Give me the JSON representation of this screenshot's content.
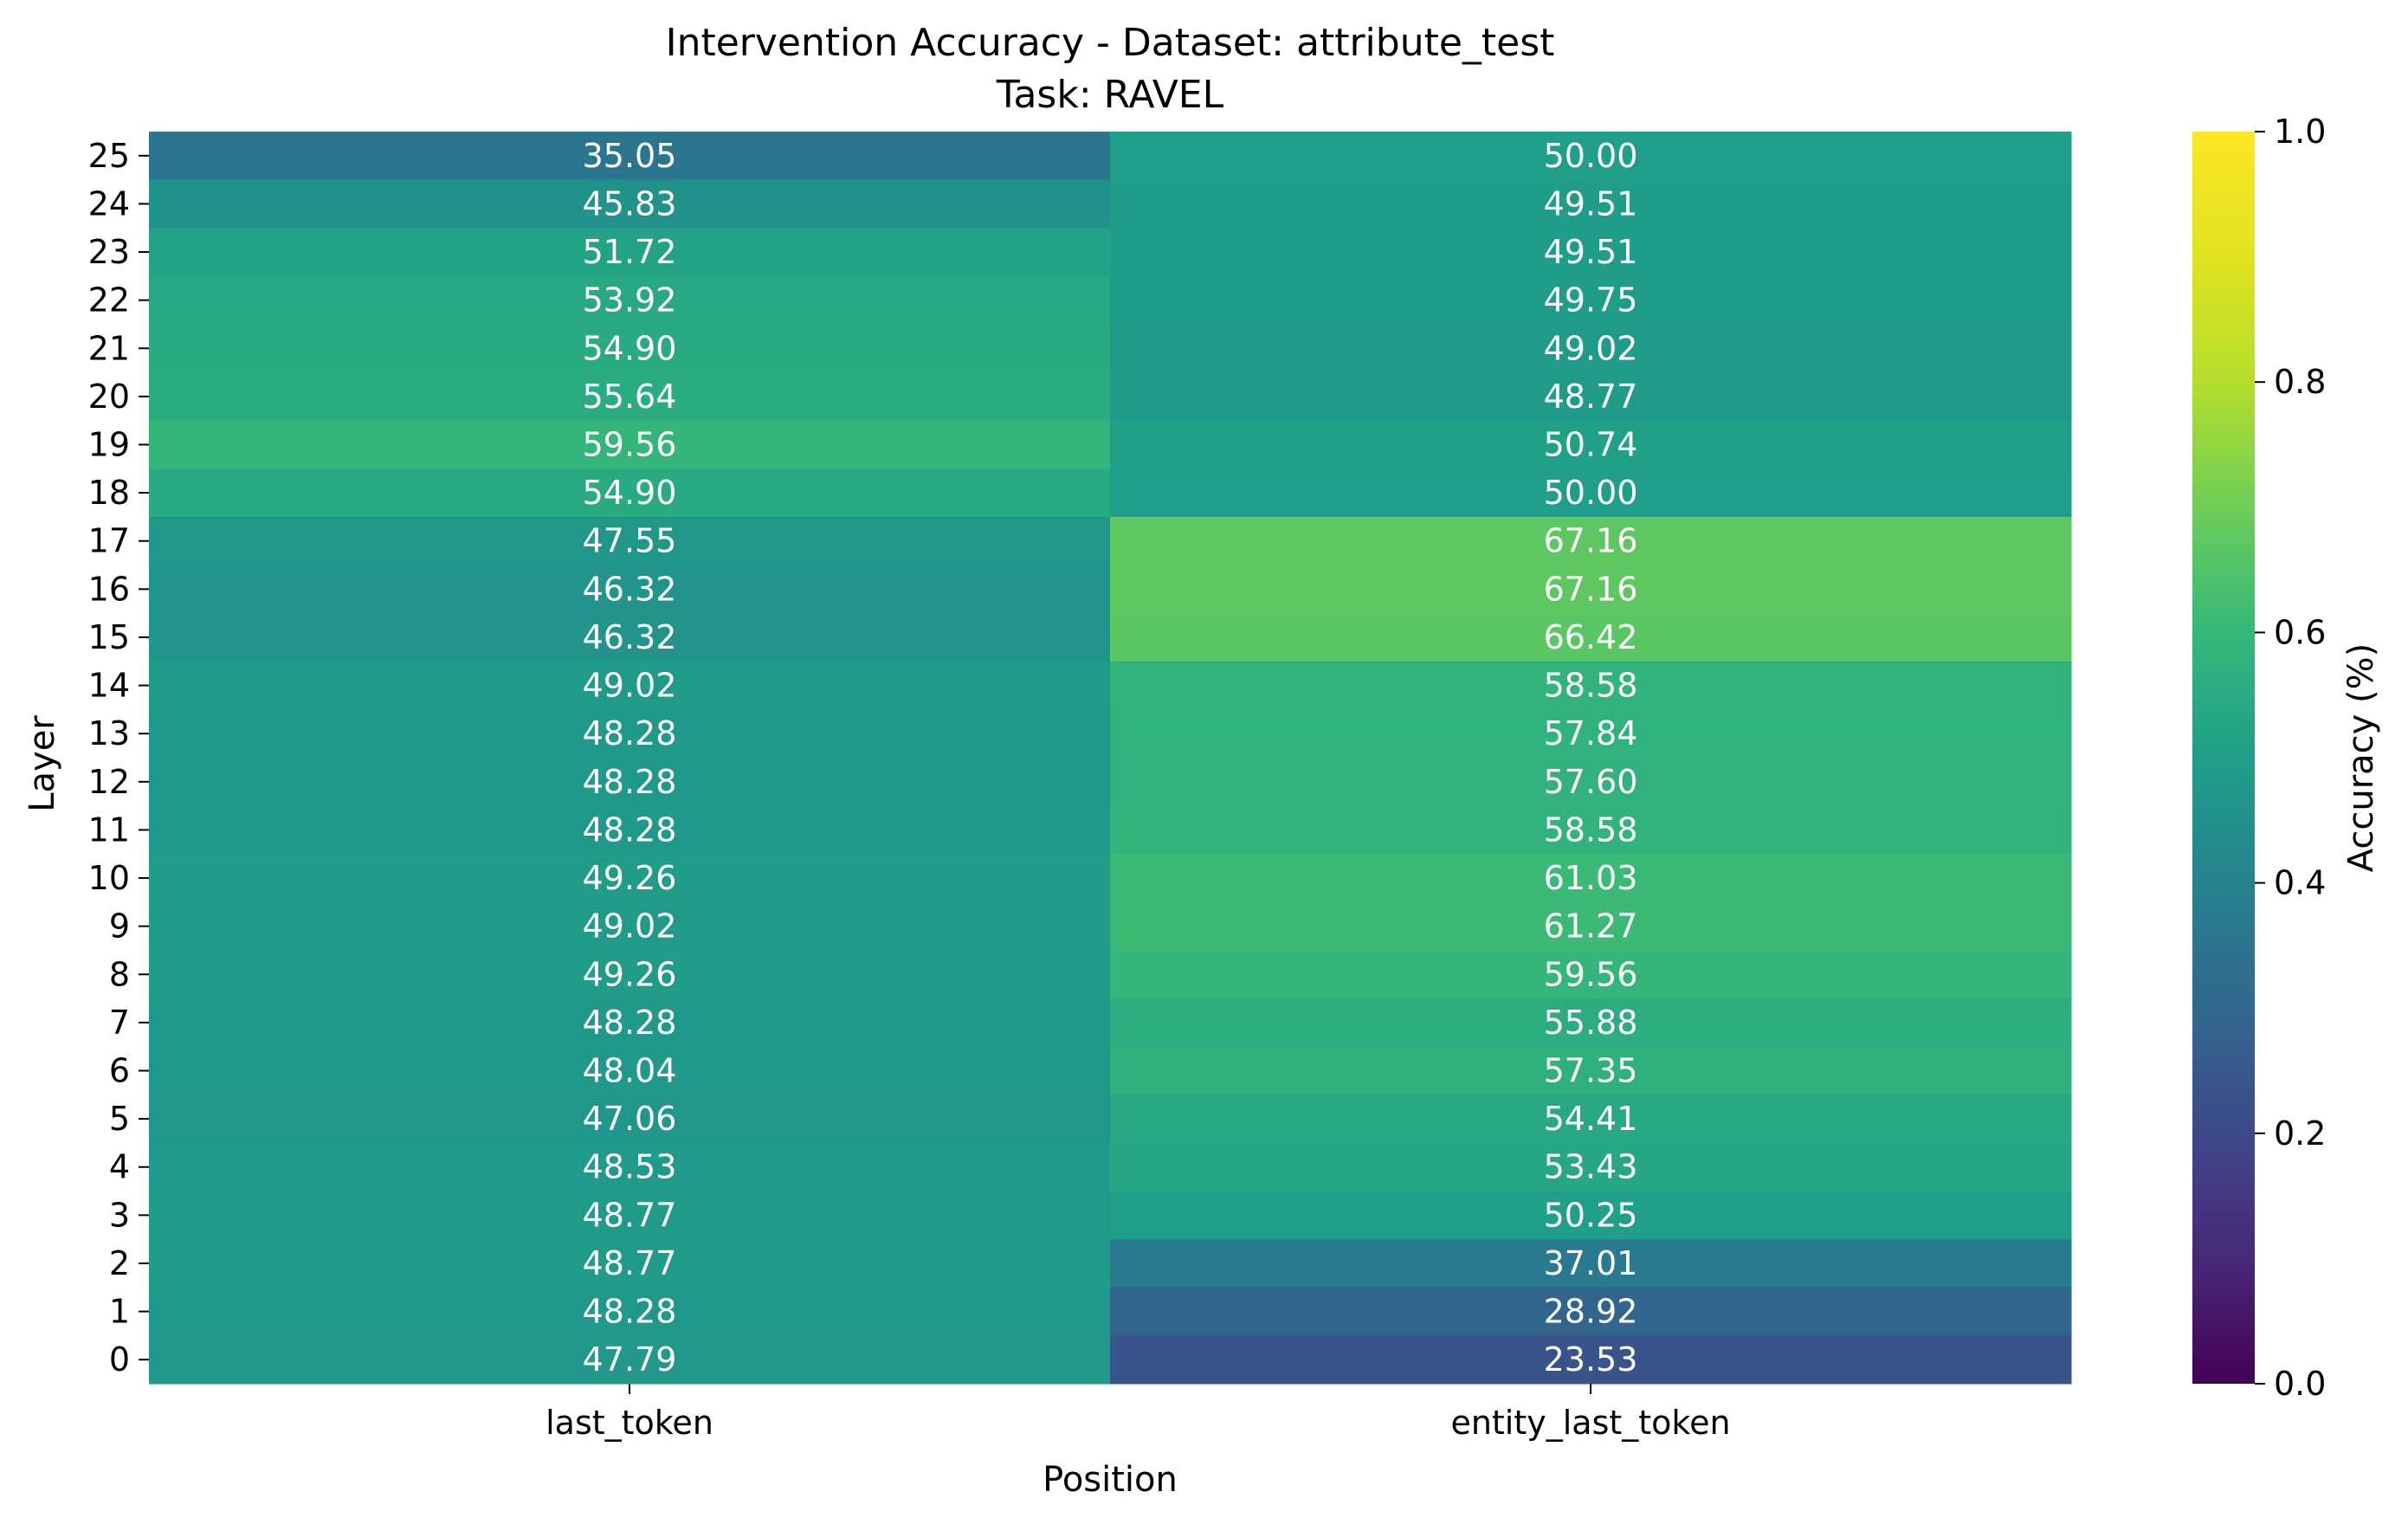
{
  "chart_data": {
    "type": "heatmap",
    "title": "Intervention Accuracy - Dataset: attribute_test",
    "subtitle": "Task: RAVEL",
    "xlabel": "Position",
    "ylabel": "Layer",
    "colorbar_label": "Accuracy (%)",
    "colormap": "viridis",
    "value_range": [
      0,
      1
    ],
    "colorbar_ticks": [
      "0.0",
      "0.2",
      "0.4",
      "0.6",
      "0.8",
      "1.0"
    ],
    "columns": [
      "last_token",
      "entity_last_token"
    ],
    "rows": [
      "25",
      "24",
      "23",
      "22",
      "21",
      "20",
      "19",
      "18",
      "17",
      "16",
      "15",
      "14",
      "13",
      "12",
      "11",
      "10",
      "9",
      "8",
      "7",
      "6",
      "5",
      "4",
      "3",
      "2",
      "1",
      "0"
    ],
    "values": [
      [
        "35.05",
        "50.00"
      ],
      [
        "45.83",
        "49.51"
      ],
      [
        "51.72",
        "49.51"
      ],
      [
        "53.92",
        "49.75"
      ],
      [
        "54.90",
        "49.02"
      ],
      [
        "55.64",
        "48.77"
      ],
      [
        "59.56",
        "50.74"
      ],
      [
        "54.90",
        "50.00"
      ],
      [
        "47.55",
        "67.16"
      ],
      [
        "46.32",
        "67.16"
      ],
      [
        "46.32",
        "66.42"
      ],
      [
        "49.02",
        "58.58"
      ],
      [
        "48.28",
        "57.84"
      ],
      [
        "48.28",
        "57.60"
      ],
      [
        "48.28",
        "58.58"
      ],
      [
        "49.26",
        "61.03"
      ],
      [
        "49.02",
        "61.27"
      ],
      [
        "49.26",
        "59.56"
      ],
      [
        "48.28",
        "55.88"
      ],
      [
        "48.04",
        "57.35"
      ],
      [
        "47.06",
        "54.41"
      ],
      [
        "48.53",
        "53.43"
      ],
      [
        "48.77",
        "50.25"
      ],
      [
        "48.77",
        "37.01"
      ],
      [
        "48.28",
        "28.92"
      ],
      [
        "47.79",
        "23.53"
      ]
    ],
    "grid": false,
    "legend": "colorbar-right"
  }
}
